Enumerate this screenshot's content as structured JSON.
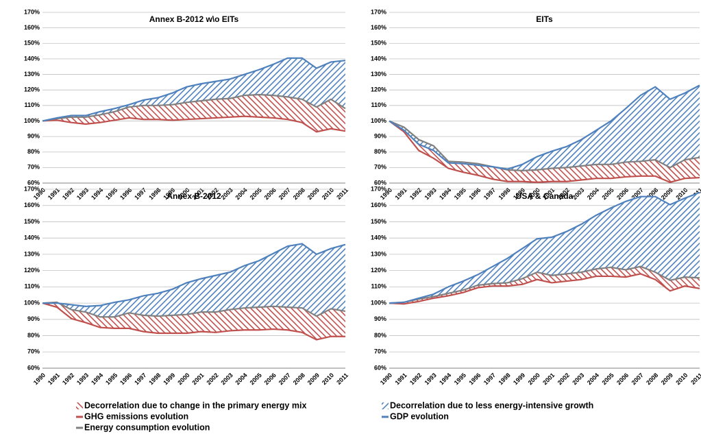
{
  "legend": {
    "areas": [
      {
        "name": "Decorrelation due to change in the primary energy mix",
        "color": "#c0504d"
      },
      {
        "name": "Decorrelation due to less energy-intensive growth",
        "color": "#4f81bd"
      }
    ]
  },
  "chart_data": [
    {
      "type": "line",
      "title": "Annex B-2012 w\\o EITs",
      "categories": [
        "1990",
        "1991",
        "1992",
        "1993",
        "1994",
        "1995",
        "1996",
        "1997",
        "1998",
        "1999",
        "2000",
        "2001",
        "2002",
        "2003",
        "2004",
        "2005",
        "2006",
        "2007",
        "2008",
        "2009",
        "2010",
        "2011"
      ],
      "ylim": [
        60,
        170
      ],
      "yticks": [
        {
          "value": 60,
          "label": "60%"
        },
        {
          "value": 70,
          "label": "70%"
        },
        {
          "value": 80,
          "label": "80%"
        },
        {
          "value": 90,
          "label": "90%"
        },
        {
          "value": 100,
          "label": "100%"
        },
        {
          "value": 110,
          "label": "110%"
        },
        {
          "value": 120,
          "label": "120%"
        },
        {
          "value": 130,
          "label": "130%"
        },
        {
          "value": 140,
          "label": "140%"
        },
        {
          "value": 150,
          "label": "150%"
        },
        {
          "value": 160,
          "label": "160%"
        },
        {
          "value": 170,
          "label": "170%"
        }
      ],
      "grid": true,
      "series": [
        {
          "name": "GHG emissions evolution",
          "color": "#c0504d",
          "values": [
            100,
            100.5,
            99,
            98,
            99,
            100.5,
            102,
            101,
            101,
            100.5,
            101,
            101.5,
            102,
            102.5,
            103,
            102.5,
            102,
            101,
            99,
            93,
            95,
            93.5
          ]
        },
        {
          "name": "Energy consumption evolution",
          "color": "#808080",
          "values": [
            100,
            101.5,
            102.5,
            102.5,
            104,
            106,
            109,
            110,
            110,
            110.5,
            112,
            113,
            114,
            114.5,
            116.5,
            117,
            116.5,
            115.5,
            114,
            109,
            114,
            108
          ]
        },
        {
          "name": "GDP evolution",
          "color": "#4f81bd",
          "values": [
            100,
            102,
            103.5,
            103.5,
            106,
            108,
            110.5,
            113.5,
            115,
            118,
            122,
            124,
            125.5,
            127,
            130,
            133,
            136.5,
            140.5,
            140.5,
            134,
            138,
            139
          ]
        }
      ]
    },
    {
      "type": "line",
      "title": "EITs",
      "categories": [
        "1990",
        "1991",
        "1992",
        "1993",
        "1994",
        "1995",
        "1996",
        "1997",
        "1998",
        "1999",
        "2000",
        "2001",
        "2002",
        "2003",
        "2004",
        "2005",
        "2006",
        "2007",
        "2008",
        "2009",
        "2010",
        "2011"
      ],
      "ylim": [
        60,
        170
      ],
      "yticks": [
        {
          "value": 60,
          "label": "60%"
        },
        {
          "value": 70,
          "label": "70%"
        },
        {
          "value": 80,
          "label": "80%"
        },
        {
          "value": 90,
          "label": "90%"
        },
        {
          "value": 100,
          "label": "100%"
        },
        {
          "value": 110,
          "label": "110%"
        },
        {
          "value": 120,
          "label": "120%"
        },
        {
          "value": 130,
          "label": "130%"
        },
        {
          "value": 140,
          "label": "140%"
        },
        {
          "value": 150,
          "label": "150%"
        },
        {
          "value": 160,
          "label": "160%"
        },
        {
          "value": 170,
          "label": "170%"
        }
      ],
      "grid": true,
      "series": [
        {
          "name": "GHG emissions evolution",
          "color": "#c0504d",
          "values": [
            100,
            93,
            81,
            76,
            69.5,
            67,
            65,
            62.5,
            61,
            61,
            60.5,
            61,
            61,
            62,
            63,
            63,
            64,
            64.5,
            64.5,
            60.5,
            63,
            63.5
          ]
        },
        {
          "name": "Energy consumption evolution",
          "color": "#808080",
          "values": [
            100,
            96,
            88,
            84,
            74,
            73.5,
            72.5,
            70.5,
            68.5,
            68,
            68.5,
            69.5,
            70,
            71,
            72,
            72,
            73.5,
            74,
            75,
            70,
            75,
            76.5
          ]
        },
        {
          "name": "GDP evolution",
          "color": "#4f81bd",
          "values": [
            100,
            94,
            85,
            81,
            73,
            72.5,
            71.5,
            70.5,
            69,
            72,
            77,
            80.5,
            83.5,
            88,
            94,
            100,
            108,
            116.5,
            122,
            114,
            118,
            123
          ]
        }
      ]
    },
    {
      "type": "line",
      "title": "Annex B-2012",
      "categories": [
        "1990",
        "1991",
        "1992",
        "1993",
        "1994",
        "1995",
        "1996",
        "1997",
        "1998",
        "1999",
        "2000",
        "2001",
        "2002",
        "2003",
        "2004",
        "2005",
        "2006",
        "2007",
        "2008",
        "2009",
        "2010",
        "2011"
      ],
      "ylim": [
        60,
        170
      ],
      "yticks": [
        {
          "value": 60,
          "label": "60%"
        },
        {
          "value": 70,
          "label": "70%"
        },
        {
          "value": 80,
          "label": "80%"
        },
        {
          "value": 90,
          "label": "90%"
        },
        {
          "value": 100,
          "label": "100%"
        },
        {
          "value": 110,
          "label": "110%"
        },
        {
          "value": 120,
          "label": "120%"
        },
        {
          "value": 130,
          "label": "130%"
        },
        {
          "value": 140,
          "label": "140%"
        },
        {
          "value": 150,
          "label": "150%"
        },
        {
          "value": 160,
          "label": "160%"
        },
        {
          "value": 170,
          "label": "170%"
        }
      ],
      "grid": true,
      "series": [
        {
          "name": "GHG emissions evolution",
          "color": "#c0504d",
          "values": [
            100,
            97.5,
            90.5,
            88,
            85,
            84.5,
            84.5,
            82.5,
            81.5,
            81.5,
            81.5,
            82.5,
            82,
            83,
            83.5,
            83.5,
            84,
            83.5,
            82,
            77.5,
            79.5,
            79.5
          ]
        },
        {
          "name": "Energy consumption evolution",
          "color": "#808080",
          "values": [
            100,
            100.5,
            96,
            94.5,
            91.5,
            91.5,
            94,
            92.5,
            92,
            92.5,
            93,
            94.5,
            94.5,
            96,
            97,
            97.5,
            98,
            97.5,
            97,
            92,
            96.5,
            95
          ]
        },
        {
          "name": "GDP evolution",
          "color": "#4f81bd",
          "values": [
            100,
            100,
            99,
            98,
            98.5,
            100.5,
            102,
            104.5,
            106,
            108.5,
            112.5,
            115,
            117,
            119,
            123,
            126,
            130.5,
            135,
            136.5,
            130,
            133.5,
            136
          ]
        }
      ]
    },
    {
      "type": "line",
      "title": "USA & Canada",
      "categories": [
        "1990",
        "1991",
        "1992",
        "1993",
        "1994",
        "1995",
        "1996",
        "1997",
        "1998",
        "1999",
        "2000",
        "2001",
        "2002",
        "2003",
        "2004",
        "2005",
        "2006",
        "2007",
        "2008",
        "2009",
        "2010",
        "2011"
      ],
      "ylim": [
        60,
        170
      ],
      "yticks": [
        {
          "value": 60,
          "label": "60%"
        },
        {
          "value": 70,
          "label": "70%"
        },
        {
          "value": 80,
          "label": "80%"
        },
        {
          "value": 90,
          "label": "90%"
        },
        {
          "value": 100,
          "label": "100%"
        },
        {
          "value": 110,
          "label": "110%"
        },
        {
          "value": 120,
          "label": "120%"
        },
        {
          "value": 130,
          "label": "130%"
        },
        {
          "value": 140,
          "label": "140%"
        },
        {
          "value": 150,
          "label": "150%"
        },
        {
          "value": 160,
          "label": "160%"
        },
        {
          "value": 170,
          "label": "170%"
        }
      ],
      "grid": true,
      "series": [
        {
          "name": "GHG emissions evolution",
          "color": "#c0504d",
          "values": [
            100,
            99.5,
            101,
            103,
            104.5,
            106.5,
            109.5,
            110.5,
            110.5,
            111.5,
            114.5,
            112.5,
            113.5,
            114.5,
            116.5,
            116.5,
            116,
            118,
            114.5,
            107.5,
            110.5,
            109
          ]
        },
        {
          "name": "Energy consumption evolution",
          "color": "#808080",
          "values": [
            100,
            100.5,
            102.5,
            104,
            106,
            108,
            111,
            112,
            112.5,
            115,
            119,
            117,
            118,
            119,
            121,
            122,
            120.5,
            122.5,
            119,
            114,
            116,
            115.5
          ]
        },
        {
          "name": "GDP evolution",
          "color": "#4f81bd",
          "values": [
            100,
            100.5,
            103,
            105.5,
            110,
            113.5,
            117.5,
            122.5,
            127.5,
            133.5,
            139.5,
            140.5,
            144,
            148.5,
            154,
            158.5,
            162.5,
            165.5,
            165.5,
            160.5,
            164.5,
            168
          ]
        }
      ]
    }
  ]
}
